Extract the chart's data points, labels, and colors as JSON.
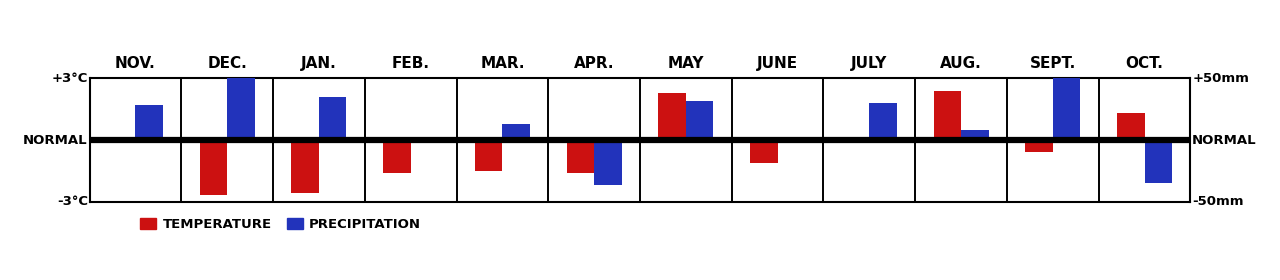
{
  "months": [
    "NOV.",
    "DEC.",
    "JAN.",
    "FEB.",
    "MAR.",
    "APR.",
    "MAY",
    "JUNE",
    "JULY",
    "AUG.",
    "SEPT.",
    "OCT."
  ],
  "temperature": [
    0.0,
    -2.7,
    -2.6,
    -1.6,
    -1.5,
    -1.6,
    2.3,
    -1.1,
    0.0,
    2.4,
    -0.6,
    1.3
  ],
  "precipitation": [
    1.7,
    3.0,
    2.1,
    0.0,
    0.8,
    -2.2,
    1.9,
    0.0,
    1.8,
    0.5,
    3.4,
    -2.1
  ],
  "temp_color": "#cc1111",
  "precip_color": "#2233bb",
  "background": "#ffffff",
  "bar_width": 0.3,
  "ylim": [
    -3,
    3
  ],
  "y_labels_left": [
    "-3°C",
    "NORMAL",
    "+3°C"
  ],
  "y_labels_right": [
    "-50mm",
    "NORMAL",
    "+50mm"
  ],
  "legend_temp": "TEMPERATURE",
  "legend_precip": "PRECIPITATION",
  "title_fontsize": 11,
  "label_fontsize": 10,
  "legend_fontsize": 9
}
